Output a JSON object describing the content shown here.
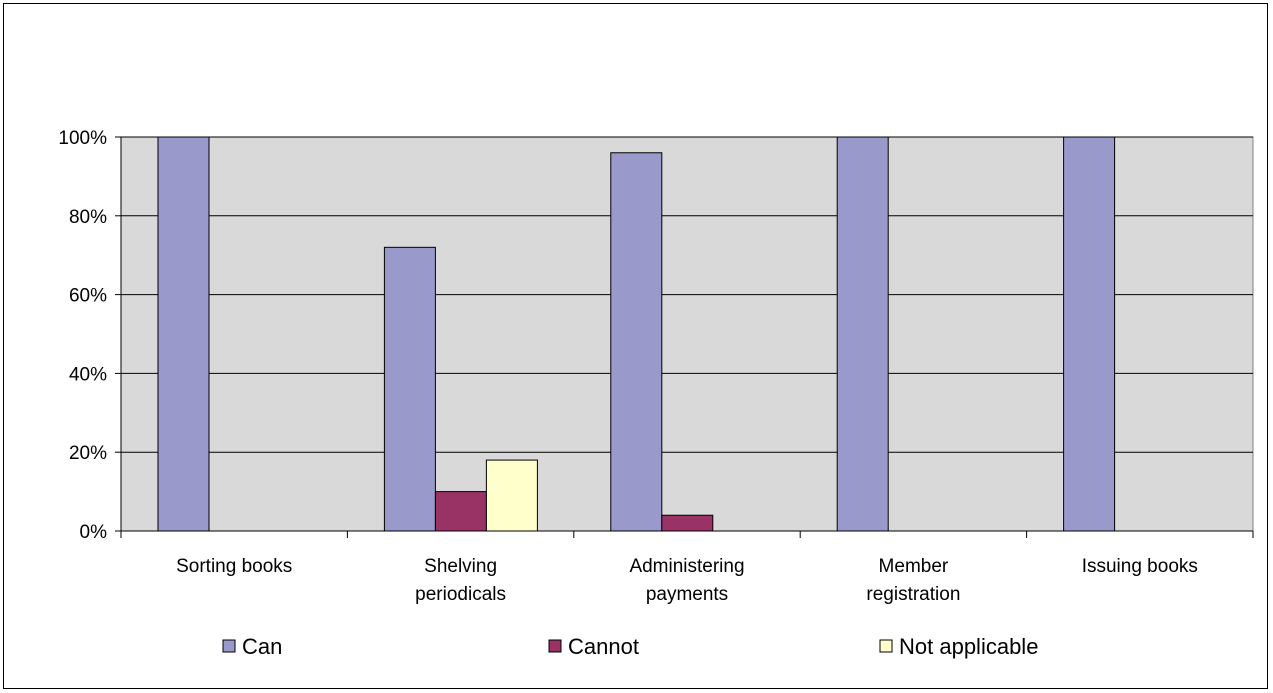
{
  "chart_data": {
    "type": "bar",
    "categories": [
      [
        "Sorting books"
      ],
      [
        "Shelving",
        "periodicals"
      ],
      [
        "Administering",
        "payments"
      ],
      [
        "Member",
        "registration"
      ],
      [
        "Issuing books"
      ]
    ],
    "series": [
      {
        "name": "Can",
        "values": [
          100,
          72,
          96,
          100,
          100
        ],
        "color": "#9999cc"
      },
      {
        "name": "Cannot",
        "values": [
          0,
          10,
          4,
          0,
          0
        ],
        "color": "#993366"
      },
      {
        "name": "Not applicable",
        "values": [
          0,
          18,
          0,
          0,
          0
        ],
        "color": "#ffffcc"
      }
    ],
    "ylim": [
      0,
      100
    ],
    "yticks": [
      "0%",
      "20%",
      "40%",
      "60%",
      "80%",
      "100%"
    ],
    "plot_background": "#d9d9d9",
    "grid": true,
    "legend_position": "bottom"
  }
}
